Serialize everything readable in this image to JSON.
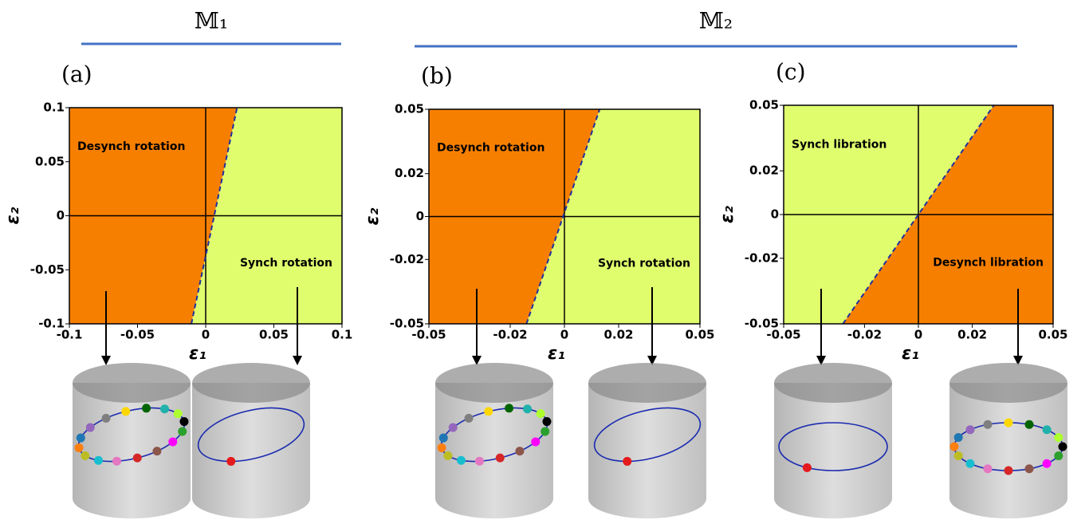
{
  "groups": [
    {
      "title": "𝕄₁"
    },
    {
      "title": "𝕄₂"
    }
  ],
  "chart_data": [
    {
      "type": "phase",
      "label": "(a)",
      "xlabel": "ε₁",
      "ylabel": "ε₂",
      "xlim": [
        -0.1,
        0.1
      ],
      "ylim": [
        -0.1,
        0.1
      ],
      "xticks": [
        -0.1,
        -0.05,
        0,
        0.05,
        0.1
      ],
      "yticks": [
        -0.1,
        -0.05,
        0,
        0.05,
        0.1
      ],
      "zero_lines": true,
      "boundary": {
        "x": [
          -0.0105,
          0.023
        ],
        "y": [
          -0.1,
          0.1
        ],
        "color": "#1f2fa0",
        "style": "dashed"
      },
      "regions": [
        {
          "label": "Desynch rotation",
          "color": "#f77f00",
          "side": "left"
        },
        {
          "label": "Synch rotation",
          "color": "#e0fd6e",
          "side": "right"
        }
      ]
    },
    {
      "type": "phase",
      "label": "(b)",
      "xlabel": "ε₁",
      "ylabel": "ε₂",
      "xlim": [
        -0.05,
        0.05
      ],
      "ylim": [
        -0.05,
        0.05
      ],
      "xticks": [
        -0.05,
        -0.02,
        0,
        0.02,
        0.05
      ],
      "yticks": [
        -0.05,
        -0.02,
        0,
        0.02,
        0.05
      ],
      "zero_lines": true,
      "boundary": {
        "x": [
          -0.014,
          0.013
        ],
        "y": [
          -0.05,
          0.05
        ],
        "color": "#1f2fa0",
        "style": "dashed"
      },
      "regions": [
        {
          "label": "Desynch rotation",
          "color": "#f77f00",
          "side": "left"
        },
        {
          "label": "Synch rotation",
          "color": "#e0fd6e",
          "side": "right"
        }
      ]
    },
    {
      "type": "phase",
      "label": "(c)",
      "xlabel": "ε₁",
      "ylabel": "ε₂",
      "xlim": [
        -0.05,
        0.05
      ],
      "ylim": [
        -0.05,
        0.05
      ],
      "xticks": [
        -0.05,
        -0.02,
        0,
        0.02,
        0.05
      ],
      "yticks": [
        -0.05,
        -0.02,
        0,
        0.02,
        0.05
      ],
      "zero_lines": true,
      "boundary": {
        "x": [
          -0.028,
          0.028
        ],
        "y": [
          -0.05,
          0.05
        ],
        "color": "#1f2fa0",
        "style": "dashed"
      },
      "regions": [
        {
          "label": "Synch libration",
          "color": "#e0fd6e",
          "side": "left"
        },
        {
          "label": "Desynch libration",
          "color": "#f77f00",
          "side": "right"
        }
      ]
    }
  ]
}
